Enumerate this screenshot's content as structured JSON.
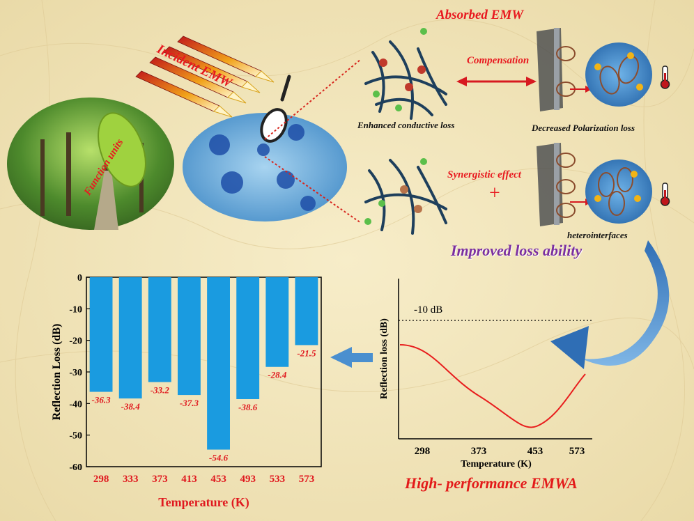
{
  "header": {
    "incident": "Incident  EMW",
    "absorbed": "Absorbed EMW",
    "function_units": "Function units"
  },
  "mechanisms": {
    "compensation": "Compensation",
    "conductive_loss": "Enhanced conductive loss",
    "polarization_loss": "Decreased Polarization loss",
    "synergistic": "Synergistic effect",
    "plus": "+",
    "heterointerfaces": "heterointerfaces",
    "improved": "Improved loss ability"
  },
  "performance_label": "High- performance EMWA",
  "colors": {
    "bar": "#1a9be0",
    "curve": "#e81d1d",
    "accent_red": "#e8191f",
    "purple": "#7b2fa0",
    "arrow_blue": "#4a8fcf"
  },
  "chart_data": [
    {
      "type": "bar",
      "categories": [
        "298",
        "333",
        "373",
        "413",
        "453",
        "493",
        "533",
        "573"
      ],
      "values": [
        -36.3,
        -38.4,
        -33.2,
        -37.3,
        -54.6,
        -38.6,
        -28.4,
        -21.5
      ],
      "data_labels": [
        "-36.3",
        "-38.4",
        "-33.2",
        "-37.3",
        "-54.6",
        "-38.6",
        "-28.4",
        "-21.5"
      ],
      "xlabel": "Temperature (K)",
      "ylabel": "Reflection Loss (dB)",
      "ylim": [
        -60,
        0
      ],
      "yticks": [
        "0",
        "-10",
        "-20",
        "-30",
        "-40",
        "-50",
        "-60"
      ]
    },
    {
      "type": "line",
      "xlabel": "Temperature (K)",
      "ylabel": "Reflection loss (dB)",
      "xticks": [
        "298",
        "373",
        "453",
        "573"
      ],
      "reference_line_label": "-10 dB"
    }
  ]
}
